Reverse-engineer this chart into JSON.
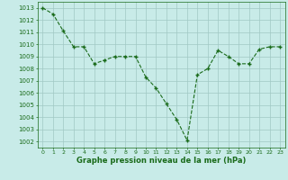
{
  "x": [
    0,
    1,
    2,
    3,
    4,
    5,
    6,
    7,
    8,
    9,
    10,
    11,
    12,
    13,
    14,
    15,
    16,
    17,
    18,
    19,
    20,
    21,
    22,
    23
  ],
  "y": [
    1013.0,
    1012.5,
    1011.1,
    1009.8,
    1009.8,
    1008.4,
    1008.7,
    1009.0,
    1009.0,
    1009.0,
    1007.3,
    1006.4,
    1005.1,
    1003.8,
    1002.1,
    1007.5,
    1008.0,
    1009.5,
    1009.0,
    1008.4,
    1008.4,
    1009.6,
    1009.8,
    1009.8
  ],
  "line_color": "#1a6b1a",
  "marker": "+",
  "markersize": 3.5,
  "linewidth": 0.8,
  "bg_color": "#c8ebe8",
  "grid_color": "#a0c8c4",
  "xlabel": "Graphe pression niveau de la mer (hPa)",
  "xlabel_color": "#1a6b1a",
  "tick_color": "#1a6b1a",
  "ylim": [
    1001.5,
    1013.5
  ],
  "xlim": [
    -0.5,
    23.5
  ],
  "yticks": [
    1002,
    1003,
    1004,
    1005,
    1006,
    1007,
    1008,
    1009,
    1010,
    1011,
    1012,
    1013
  ],
  "xticks": [
    0,
    1,
    2,
    3,
    4,
    5,
    6,
    7,
    8,
    9,
    10,
    11,
    12,
    13,
    14,
    15,
    16,
    17,
    18,
    19,
    20,
    21,
    22,
    23
  ],
  "ytick_fontsize": 5.0,
  "xtick_fontsize": 4.5,
  "xlabel_fontsize": 6.0
}
